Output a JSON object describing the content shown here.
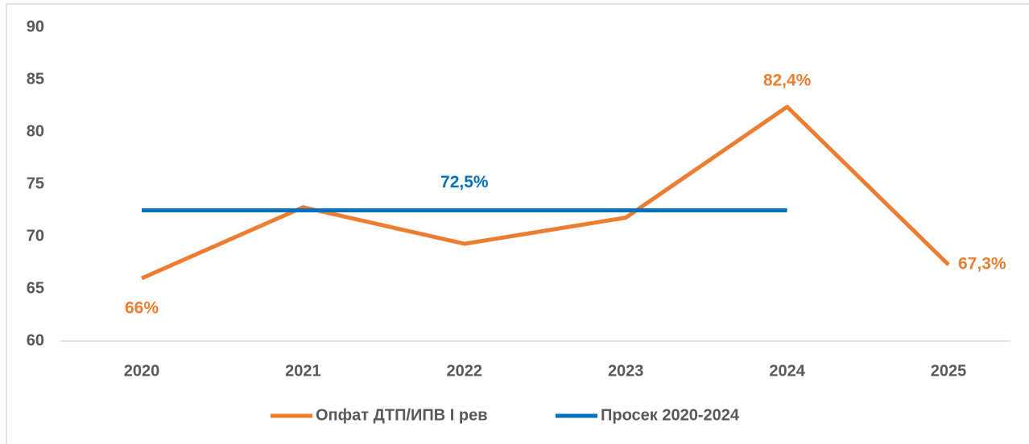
{
  "chart_data": {
    "type": "line",
    "categories": [
      "2020",
      "2021",
      "2022",
      "2023",
      "2024",
      "2025"
    ],
    "series": [
      {
        "name": "Опфат ДТП/ИПВ I рев",
        "color": "#ed7d31",
        "values": [
          66,
          72.8,
          69.3,
          71.8,
          82.4,
          67.3
        ],
        "value_labels": [
          "66%",
          null,
          null,
          null,
          "82,4%",
          "67,3%"
        ]
      },
      {
        "name": "Просек 2020-2024",
        "color": "#0070c0",
        "values": [
          72.5,
          72.5,
          72.5,
          72.5,
          72.5,
          null
        ],
        "value_labels": [
          null,
          null,
          "72,5%",
          null,
          null,
          null
        ]
      }
    ],
    "ylim": [
      60,
      90
    ],
    "yticks": [
      60,
      65,
      70,
      75,
      80,
      85,
      90
    ],
    "grid": false,
    "legend": "bottom"
  }
}
